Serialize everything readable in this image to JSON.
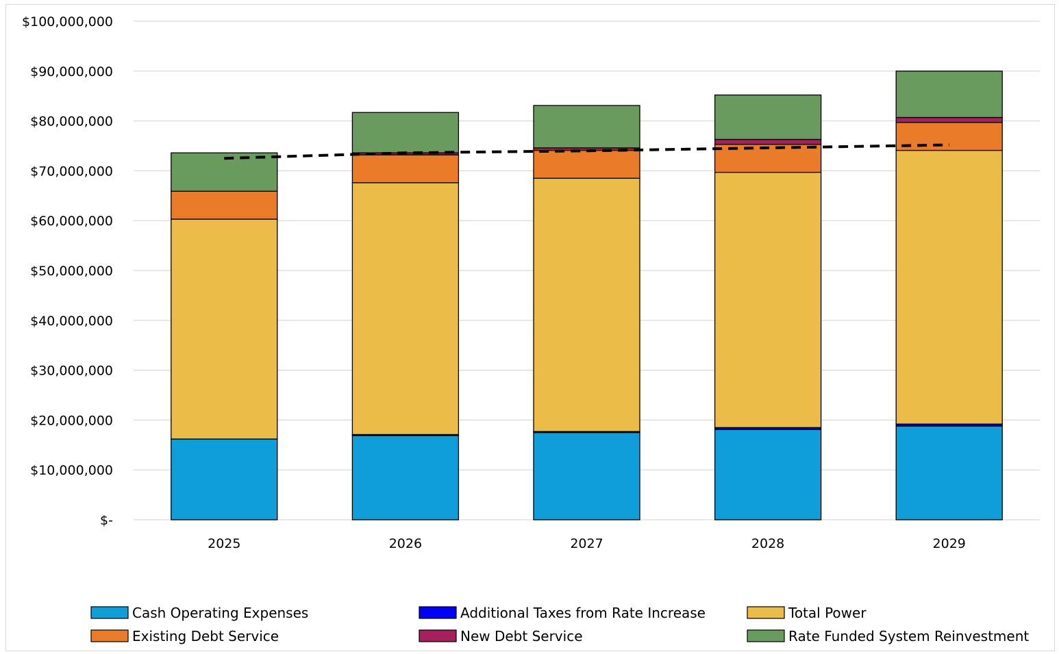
{
  "chart_data": {
    "type": "bar",
    "stacked": true,
    "title": "",
    "xlabel": "",
    "ylabel": "",
    "categories": [
      "2025",
      "2026",
      "2027",
      "2028",
      "2029"
    ],
    "ylim": [
      0,
      100000000
    ],
    "y_ticks": [
      0,
      10000000,
      20000000,
      30000000,
      40000000,
      50000000,
      60000000,
      70000000,
      80000000,
      90000000,
      100000000
    ],
    "y_tick_labels": [
      "$-",
      "$10,000,000",
      "$20,000,000",
      "$30,000,000",
      "$40,000,000",
      "$50,000,000",
      "$60,000,000",
      "$70,000,000",
      "$80,000,000",
      "$90,000,000",
      "$100,000,000"
    ],
    "grid": "horizontal",
    "legend_position": "bottom",
    "series": [
      {
        "name": "Cash Operating Expenses",
        "color": "#0f9ed9",
        "values": [
          16200000,
          16900000,
          17500000,
          18100000,
          18800000
        ]
      },
      {
        "name": "Additional Taxes from Rate Increase",
        "color": "#0000ff",
        "values": [
          0,
          200000,
          200000,
          400000,
          400000
        ]
      },
      {
        "name": "Total Power",
        "color": "#ecbc48",
        "values": [
          44100000,
          50500000,
          50800000,
          51200000,
          54900000
        ]
      },
      {
        "name": "Existing Debt Service",
        "color": "#ea7b29",
        "values": [
          5600000,
          5600000,
          5600000,
          5600000,
          5600000
        ]
      },
      {
        "name": "New Debt Service",
        "color": "#a6205d",
        "values": [
          0,
          400000,
          500000,
          1000000,
          1000000
        ]
      },
      {
        "name": "Rate Funded System Reinvestment",
        "color": "#6a9b5e",
        "values": [
          7700000,
          8100000,
          8500000,
          8900000,
          9300000
        ]
      }
    ],
    "line_series": {
      "name": "",
      "style": "dashed",
      "color": "#000000",
      "values": [
        72500000,
        73600000,
        74000000,
        74600000,
        75200000
      ]
    }
  }
}
